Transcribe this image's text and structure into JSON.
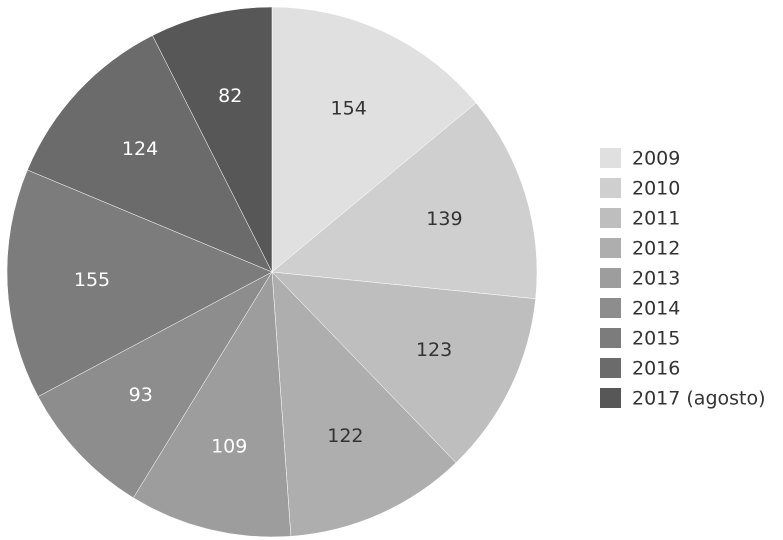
{
  "chart_data": {
    "type": "pie",
    "categories": [
      "2009",
      "2010",
      "2011",
      "2012",
      "2013",
      "2014",
      "2015",
      "2016",
      "2017 (agosto)"
    ],
    "values": [
      154,
      139,
      123,
      122,
      109,
      93,
      155,
      124,
      82
    ],
    "colors": [
      "#e0e0e0",
      "#cfcfcf",
      "#bebebe",
      "#aeaeae",
      "#9d9d9d",
      "#8d8d8d",
      "#7c7c7c",
      "#6b6b6b",
      "#575757"
    ],
    "legend": "right"
  }
}
